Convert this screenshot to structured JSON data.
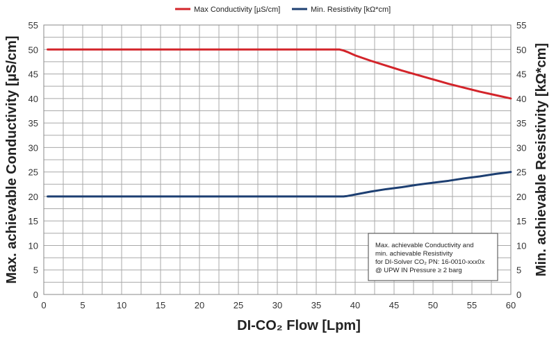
{
  "chart_data": {
    "type": "line",
    "title": "",
    "xlabel": "DI-CO₂ Flow [Lpm]",
    "ylabel_left": "Max. achievable Conductivity [µS/cm]",
    "ylabel_right": "Min. achievable Resistivity [kΩ*cm]",
    "xlim": [
      0,
      60
    ],
    "ylim": [
      0,
      55
    ],
    "x_ticks": [
      0,
      5,
      10,
      15,
      20,
      25,
      30,
      35,
      40,
      45,
      50,
      55,
      60
    ],
    "y_ticks": [
      0,
      5,
      10,
      15,
      20,
      25,
      30,
      35,
      40,
      45,
      50,
      55
    ],
    "grid": true,
    "legend_position": "top-center",
    "series": [
      {
        "name": "Max Conductivity [µS/cm]",
        "color": "#d3242a",
        "x": [
          0.5,
          38,
          38.5,
          39,
          40,
          42,
          44,
          46,
          48,
          50,
          52,
          54,
          56,
          58,
          60
        ],
        "y": [
          50,
          50,
          49.8,
          49.5,
          48.8,
          47.7,
          46.7,
          45.7,
          44.8,
          43.9,
          43.0,
          42.2,
          41.4,
          40.7,
          40
        ]
      },
      {
        "name": "Min. Resistivity [kΩ*cm]",
        "color": "#1d3f72",
        "x": [
          0.5,
          38,
          38.5,
          39,
          40,
          42,
          44,
          46,
          48,
          50,
          52,
          54,
          56,
          58,
          60
        ],
        "y": [
          20,
          20,
          20,
          20.1,
          20.4,
          21.0,
          21.5,
          21.9,
          22.4,
          22.8,
          23.2,
          23.7,
          24.1,
          24.6,
          25
        ]
      }
    ],
    "annotation": {
      "lines": [
        "Max. achievable Conductivity and",
        "min. achievable Resistivity",
        "for DI-Solver CO₂ PN: 16-0010-xxx0x",
        "@ UPW IN Pressure ≥ 2 barg"
      ]
    }
  }
}
